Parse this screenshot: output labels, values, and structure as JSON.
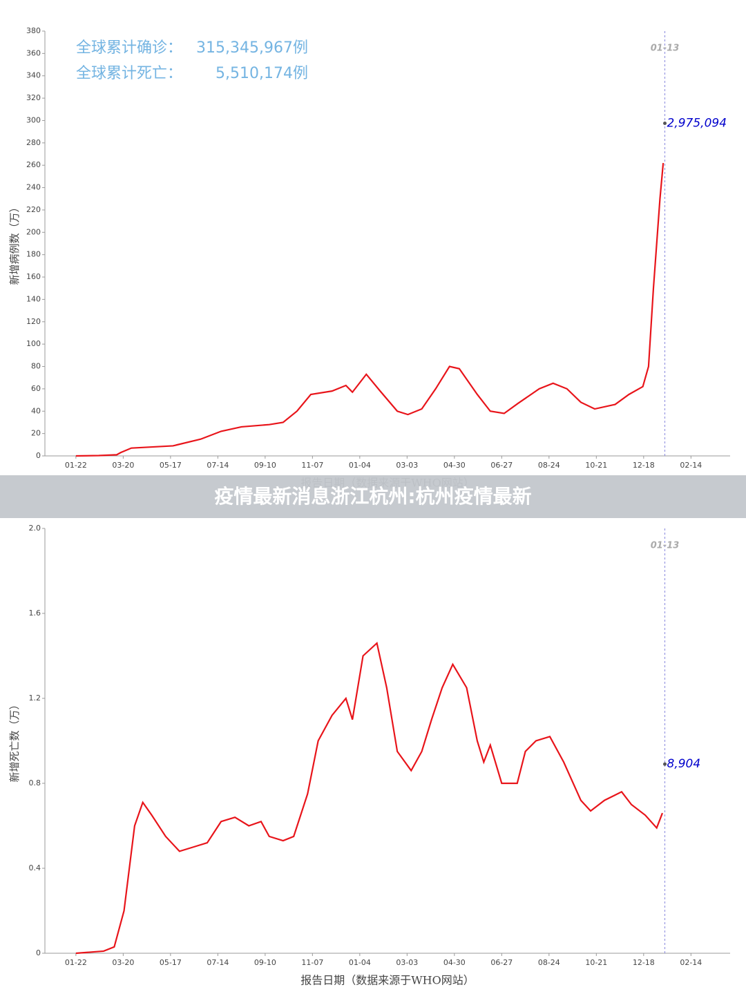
{
  "banner": "疫情最新消息浙江杭州:杭州疫情最新",
  "chart_data": [
    {
      "type": "line",
      "ylabel": "新增病例数（万）",
      "xlabel": "报告日期（数据来源于WHO网站）",
      "summary": [
        {
          "label": "全球累计确诊：",
          "value": "315,345,967例"
        },
        {
          "label": "全球累计死亡：",
          "value": "5,510,174例"
        }
      ],
      "xlim": [
        -38,
        802
      ],
      "xticks": [
        {
          "value": 0,
          "label": "01-22"
        },
        {
          "value": 58,
          "label": "03-20"
        },
        {
          "value": 116,
          "label": "05-17"
        },
        {
          "value": 174,
          "label": "07-14"
        },
        {
          "value": 232,
          "label": "09-10"
        },
        {
          "value": 290,
          "label": "11-07"
        },
        {
          "value": 348,
          "label": "01-04"
        },
        {
          "value": 406,
          "label": "03-03"
        },
        {
          "value": 464,
          "label": "04-30"
        },
        {
          "value": 522,
          "label": "06-27"
        },
        {
          "value": 580,
          "label": "08-24"
        },
        {
          "value": 638,
          "label": "10-21"
        },
        {
          "value": 696,
          "label": "12-18"
        },
        {
          "value": 754,
          "label": "02-14"
        }
      ],
      "ylim": [
        0,
        380
      ],
      "yticks": [
        0,
        20,
        40,
        60,
        80,
        100,
        120,
        140,
        160,
        180,
        200,
        220,
        240,
        260,
        280,
        300,
        320,
        340,
        360,
        380
      ],
      "x": [
        0,
        28,
        50,
        55,
        68,
        119,
        153,
        178,
        203,
        237,
        254,
        271,
        288,
        314,
        331,
        339,
        356,
        373,
        394,
        407,
        424,
        441,
        458,
        470,
        492,
        508,
        525,
        542,
        568,
        585,
        602,
        619,
        636,
        661,
        678,
        695,
        702,
        708,
        716,
        720
      ],
      "series": [
        {
          "color": "#e8141a",
          "values": [
            0,
            0.3,
            1,
            3,
            7,
            9,
            15,
            22,
            26,
            28,
            30,
            40,
            55,
            58,
            63,
            57,
            73,
            58,
            40,
            37,
            42,
            60,
            80,
            78,
            55,
            40,
            38,
            47,
            60,
            65,
            60,
            48,
            42,
            46,
            55,
            62,
            80,
            150,
            230,
            262
          ]
        }
      ],
      "vline": {
        "x": 722,
        "label": "01-13"
      },
      "marker": {
        "x": 722,
        "y": 297.5094,
        "label": "2,975,094",
        "color": "#0000cc"
      }
    },
    {
      "type": "line",
      "ylabel": "新增死亡数（万）",
      "xlabel": "报告日期（数据来源于WHO网站）",
      "xlim": [
        -38,
        802
      ],
      "xticks": [
        {
          "value": 0,
          "label": "01-22"
        },
        {
          "value": 58,
          "label": "03-20"
        },
        {
          "value": 116,
          "label": "05-17"
        },
        {
          "value": 174,
          "label": "07-14"
        },
        {
          "value": 232,
          "label": "09-10"
        },
        {
          "value": 290,
          "label": "11-07"
        },
        {
          "value": 348,
          "label": "01-04"
        },
        {
          "value": 406,
          "label": "03-03"
        },
        {
          "value": 464,
          "label": "04-30"
        },
        {
          "value": 522,
          "label": "06-27"
        },
        {
          "value": 580,
          "label": "08-24"
        },
        {
          "value": 638,
          "label": "10-21"
        },
        {
          "value": 696,
          "label": "12-18"
        },
        {
          "value": 754,
          "label": "02-14"
        }
      ],
      "ylim": [
        0,
        2
      ],
      "yticks": [
        0,
        0.4,
        0.8,
        1.2,
        1.6,
        {
          "value": 2,
          "label": "2.0"
        }
      ],
      "x": [
        0,
        34,
        47,
        59,
        72,
        82,
        93,
        110,
        127,
        144,
        161,
        178,
        195,
        212,
        227,
        237,
        254,
        267,
        284,
        297,
        314,
        331,
        339,
        352,
        369,
        381,
        394,
        411,
        424,
        436,
        449,
        462,
        479,
        492,
        500,
        508,
        522,
        541,
        551,
        564,
        581,
        598,
        619,
        631,
        648,
        669,
        681,
        698,
        712,
        719
      ],
      "series": [
        {
          "color": "#e8141a",
          "values": [
            0,
            0.01,
            0.03,
            0.2,
            0.6,
            0.71,
            0.65,
            0.55,
            0.48,
            0.5,
            0.52,
            0.62,
            0.64,
            0.6,
            0.62,
            0.55,
            0.53,
            0.55,
            0.75,
            1.0,
            1.12,
            1.2,
            1.1,
            1.4,
            1.46,
            1.25,
            0.95,
            0.86,
            0.95,
            1.1,
            1.25,
            1.36,
            1.25,
            1.0,
            0.9,
            0.98,
            0.8,
            0.8,
            0.95,
            1.0,
            1.02,
            0.9,
            0.72,
            0.67,
            0.72,
            0.76,
            0.7,
            0.65,
            0.59,
            0.66
          ]
        }
      ],
      "vline": {
        "x": 722,
        "label": "01-13"
      },
      "marker": {
        "x": 722,
        "y": 0.8904,
        "label": "8,904",
        "color": "#0000cc"
      }
    }
  ]
}
